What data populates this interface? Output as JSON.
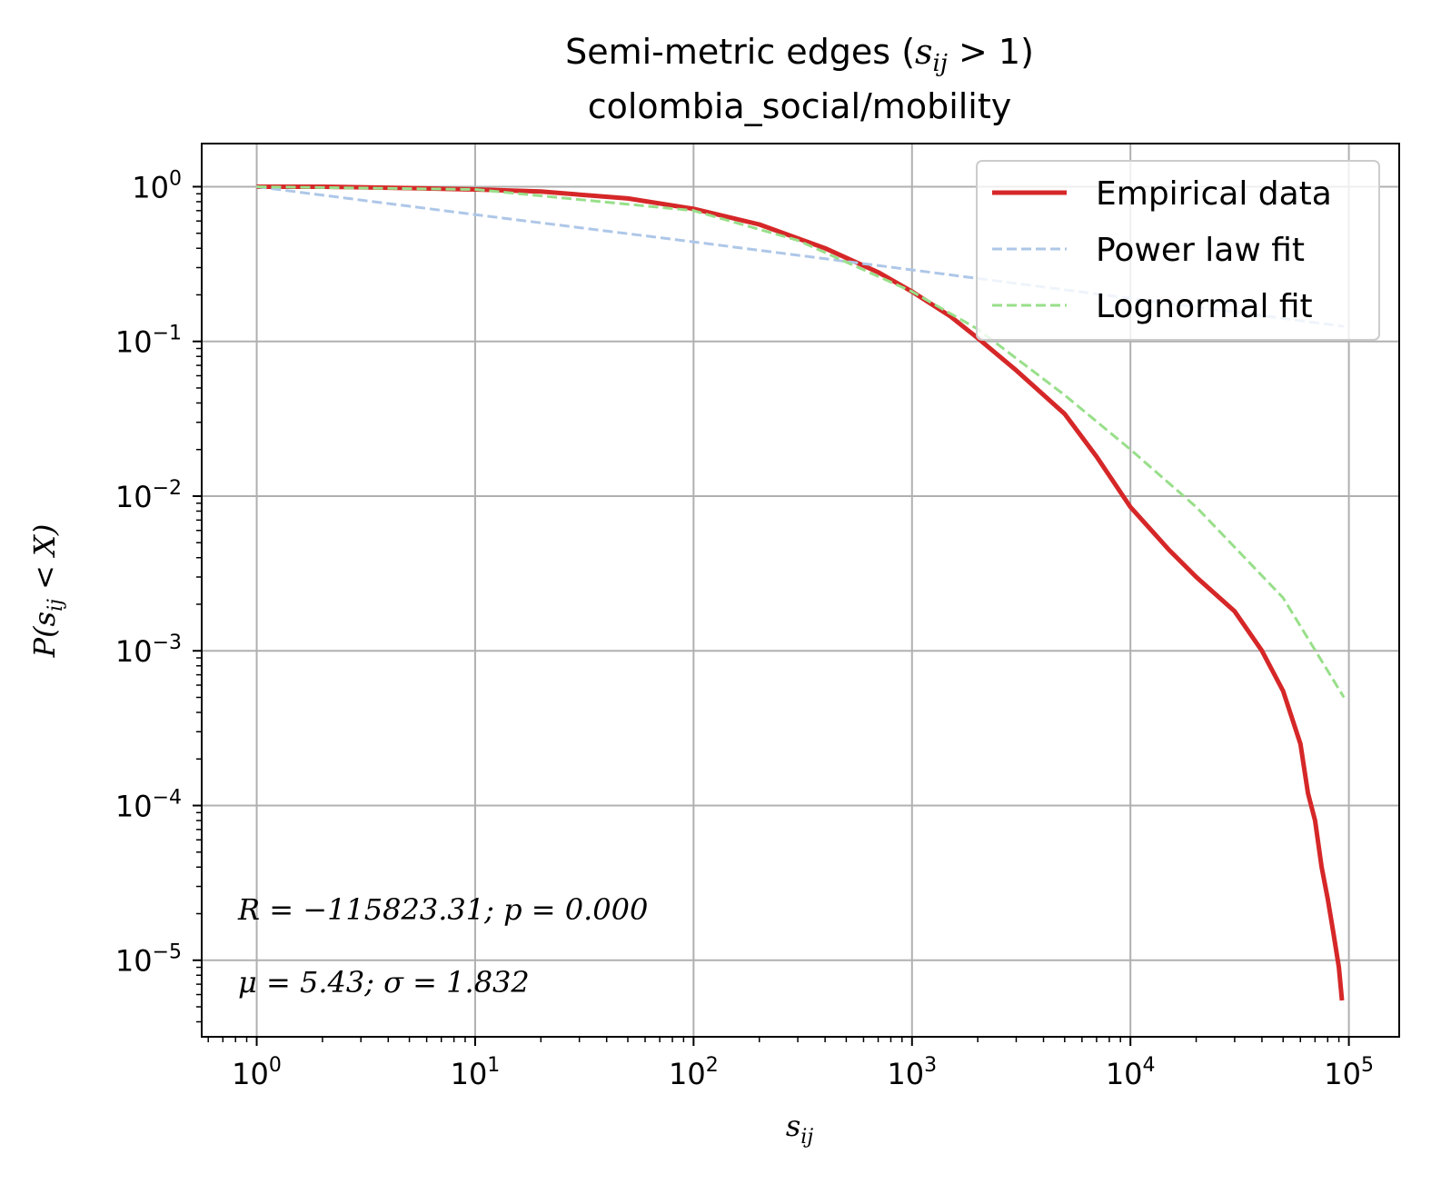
{
  "chart_data": {
    "type": "line",
    "title": "Semi-metric edges (s_ij > 1)",
    "subtitle": "colombia_social/mobility",
    "xlabel": "s_ij",
    "ylabel": "P(s_ij < X)",
    "xscale": "log",
    "yscale": "log",
    "xlim": [
      0.56,
      170000
    ],
    "ylim": [
      3.2e-06,
      1.9
    ],
    "x_ticks": [
      "10^0",
      "10^1",
      "10^2",
      "10^3",
      "10^4",
      "10^5"
    ],
    "y_ticks": [
      "10^0",
      "10^-1",
      "10^-2",
      "10^-3",
      "10^-4",
      "10^-5"
    ],
    "grid": true,
    "legend_position": "top-right",
    "colors": {
      "empirical": "#d62728",
      "power_law": "#aec7e8",
      "lognormal": "#98df8a",
      "mu_sigma_text": "#2ca02c"
    },
    "series": [
      {
        "name": "Empirical data",
        "style": "solid",
        "x": [
          1,
          2,
          5,
          10,
          20,
          50,
          100,
          200,
          400,
          700,
          1000,
          1500,
          2000,
          3000,
          5000,
          7000,
          10000,
          15000,
          20000,
          30000,
          40000,
          50000,
          60000,
          65000,
          70000,
          75000,
          80000,
          85000,
          90000,
          93000
        ],
        "y": [
          1.0,
          1.0,
          0.98,
          0.96,
          0.93,
          0.84,
          0.72,
          0.57,
          0.4,
          0.28,
          0.21,
          0.145,
          0.105,
          0.065,
          0.034,
          0.018,
          0.0085,
          0.0045,
          0.003,
          0.0018,
          0.001,
          0.00055,
          0.00025,
          0.00012,
          8e-05,
          4e-05,
          2.5e-05,
          1.5e-05,
          9e-06,
          5.5e-06
        ]
      },
      {
        "name": "Power law fit",
        "style": "dashed",
        "x": [
          1,
          10,
          100,
          1000,
          10000,
          95000
        ],
        "y": [
          1.0,
          0.66,
          0.44,
          0.29,
          0.19,
          0.125
        ]
      },
      {
        "name": "Lognormal fit",
        "style": "dashed",
        "x": [
          1,
          10,
          100,
          300,
          1000,
          2000,
          5000,
          10000,
          20000,
          50000,
          95000
        ],
        "y": [
          1.0,
          0.96,
          0.7,
          0.45,
          0.21,
          0.12,
          0.045,
          0.02,
          0.0085,
          0.0022,
          0.0005
        ]
      }
    ],
    "annotations": [
      "R = -115823.31; p = 0.000",
      "μ = 5.43; σ = 1.832"
    ]
  }
}
